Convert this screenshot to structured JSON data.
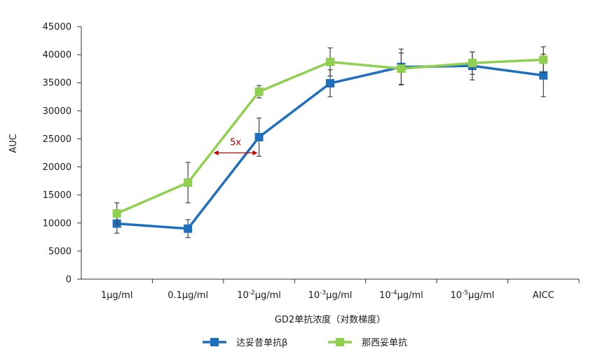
{
  "chart_data": {
    "type": "line",
    "xlabel": "GD2单抗浓度（对数梯度）",
    "ylabel": "AUC",
    "ylim": [
      0,
      45000
    ],
    "yticks": [
      0,
      5000,
      10000,
      15000,
      20000,
      25000,
      30000,
      35000,
      40000,
      45000
    ],
    "categories": [
      {
        "base": "1μg/ml",
        "exp": "",
        "unit": ""
      },
      {
        "base": "0.1μg/ml",
        "exp": "",
        "unit": ""
      },
      {
        "base": "10",
        "exp": "-2",
        "unit": "μg/ml"
      },
      {
        "base": "10",
        "exp": "-3",
        "unit": "μg/ml"
      },
      {
        "base": "10",
        "exp": "-4",
        "unit": "μg/ml"
      },
      {
        "base": "10",
        "exp": "-5",
        "unit": "μg/ml"
      },
      {
        "base": "AICC",
        "exp": "",
        "unit": ""
      }
    ],
    "grid": false,
    "legend_position": "bottom-center",
    "series": [
      {
        "name": "达妥昔单抗β",
        "color": "#1f6fbf",
        "values": [
          9900,
          9000,
          25300,
          34900,
          37800,
          38000,
          36300
        ],
        "error": [
          1700,
          1600,
          3400,
          2400,
          3200,
          2500,
          3800
        ]
      },
      {
        "name": "那西妥单抗",
        "color": "#8fd14f",
        "values": [
          11700,
          17200,
          33400,
          38700,
          37500,
          38500,
          39100
        ],
        "error": [
          1900,
          3600,
          1100,
          2500,
          2800,
          2000,
          2300
        ]
      }
    ],
    "annotations": [
      {
        "text": "5x",
        "color": "#c00000",
        "y": 22500,
        "x_from": 1.36,
        "x_to": 1.98
      }
    ]
  }
}
